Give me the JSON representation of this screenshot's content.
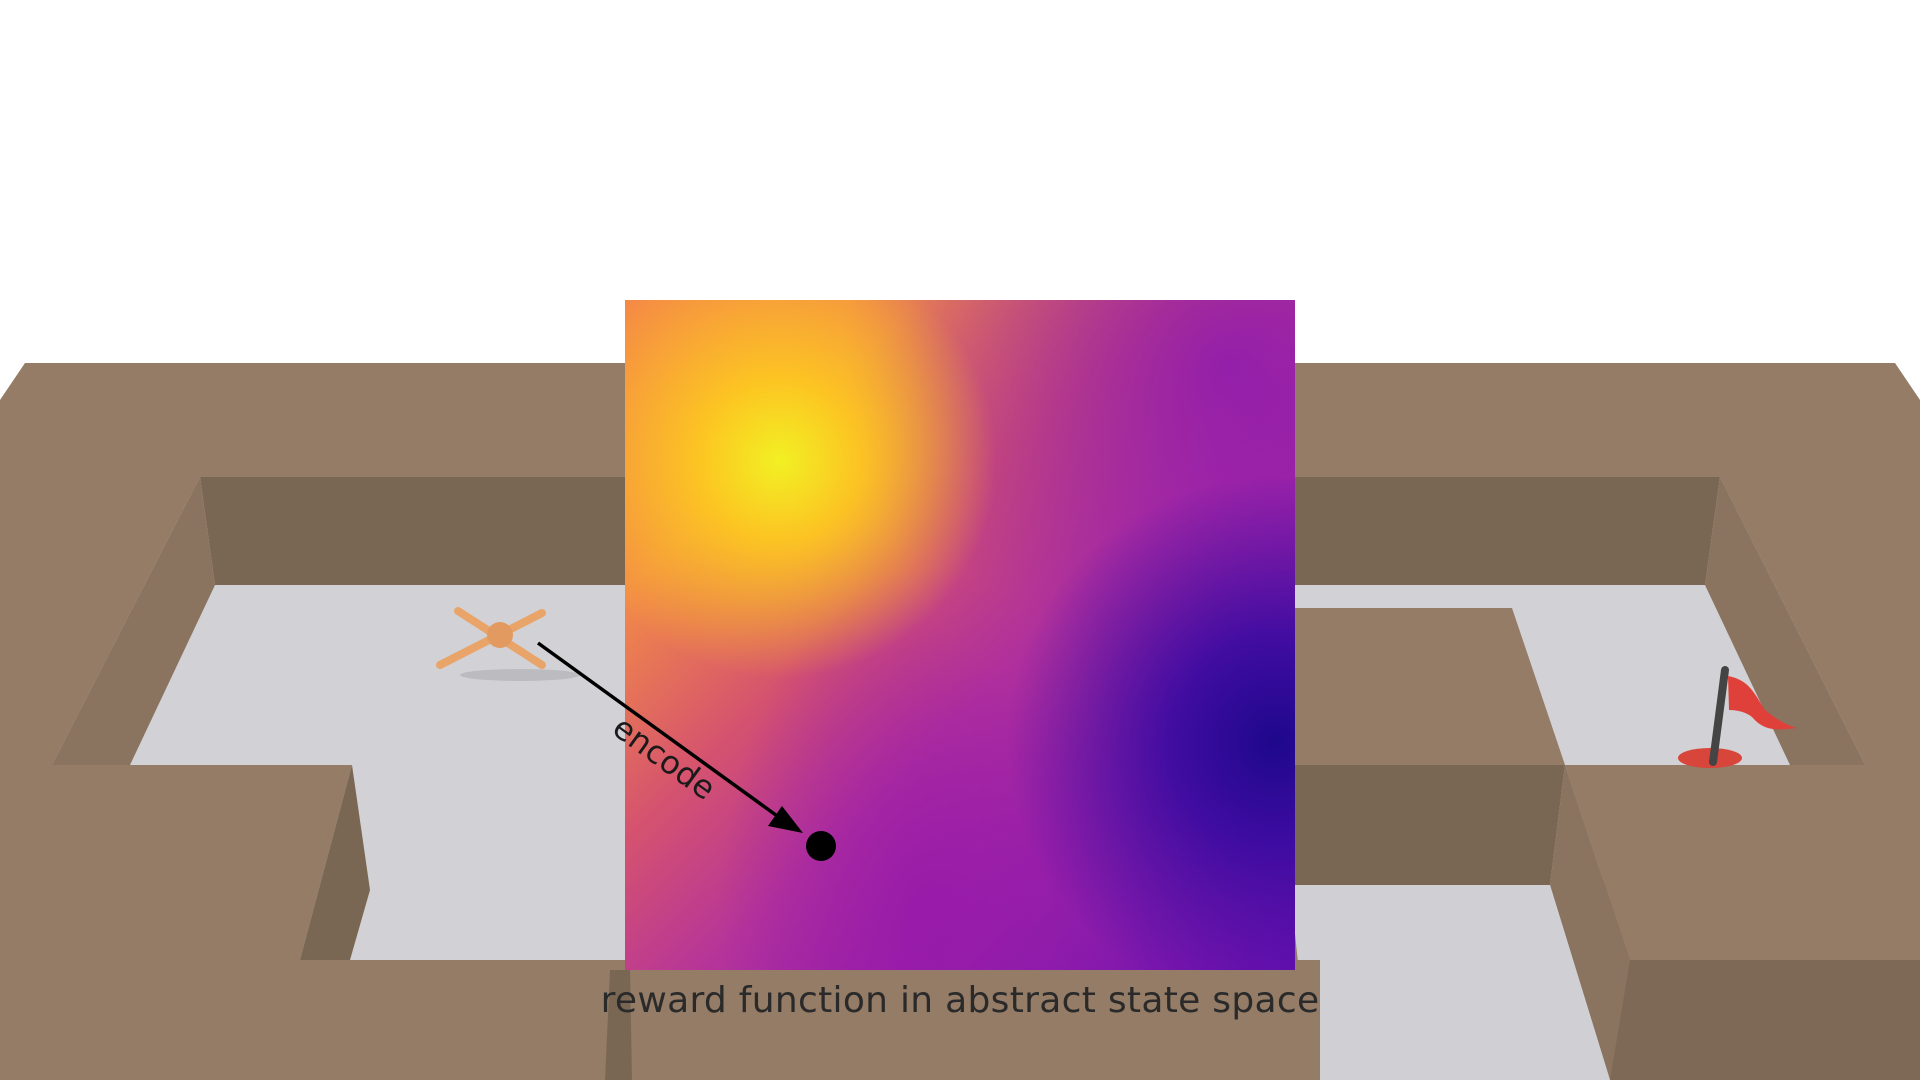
{
  "diagram": {
    "heatmap_caption": "reward function in abstract state space",
    "arrow_label": "encode",
    "colors": {
      "wall": "#947c67",
      "wall_shadow": "#7a6753",
      "floor": "#d4d4d8",
      "agent": "#e9a46a",
      "flag": "#e0403a",
      "heat_high": "#f2f023",
      "heat_mid": "#f58a45",
      "heat_low": "#1e088c"
    },
    "icons": [
      "ant-robot-icon",
      "goal-flag-icon",
      "encoded-state-dot-icon"
    ]
  }
}
